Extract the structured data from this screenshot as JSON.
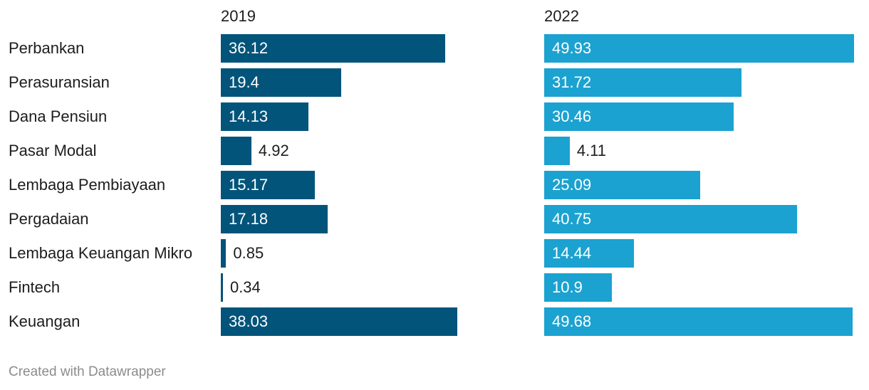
{
  "chart_data": {
    "type": "bar",
    "orientation": "horizontal",
    "categories": [
      "Perbankan",
      "Perasuransian",
      "Dana Pensiun",
      "Pasar Modal",
      "Lembaga Pembiayaan",
      "Pergadaian",
      "Lembaga Keuangan Mikro",
      "Fintech",
      "Keuangan"
    ],
    "series": [
      {
        "name": "2019",
        "color": "#03547a",
        "values": [
          36.12,
          19.4,
          14.13,
          4.92,
          15.17,
          17.18,
          0.85,
          0.34,
          38.03
        ]
      },
      {
        "name": "2022",
        "color": "#1ba2d0",
        "values": [
          49.93,
          31.72,
          30.46,
          4.11,
          25.09,
          40.75,
          14.44,
          10.9,
          49.68
        ]
      }
    ]
  },
  "footer": {
    "credit": "Created with Datawrapper"
  }
}
